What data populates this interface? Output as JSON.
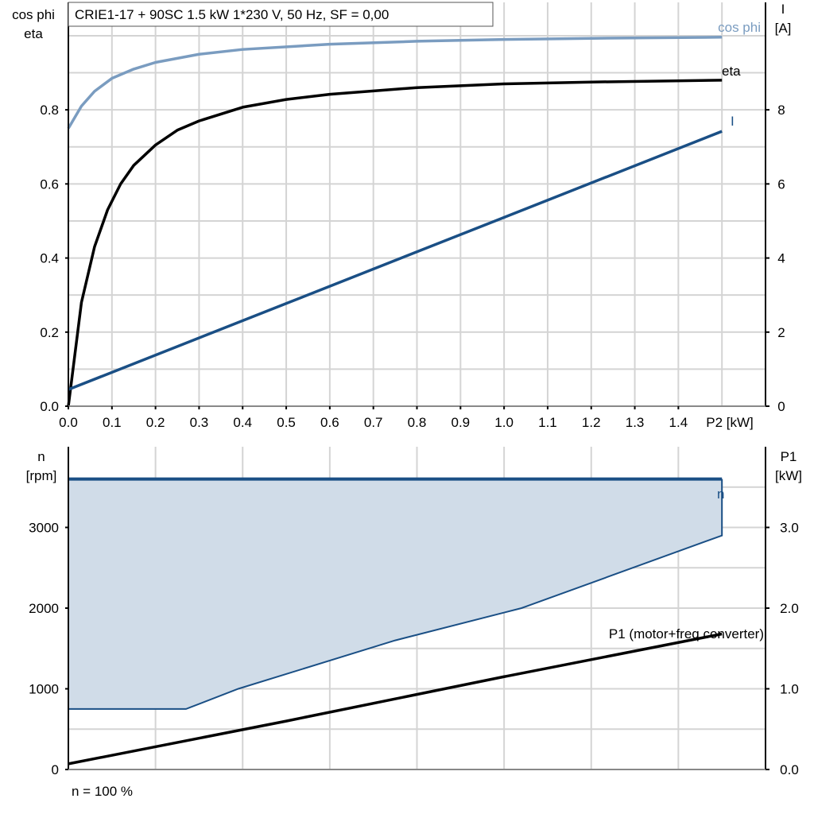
{
  "chart_data": [
    {
      "type": "line",
      "title": "CRIE1-17 + 90SC   1.5 kW   1*230 V, 50 Hz, SF = 0,00",
      "xlabel": "P2 [kW]",
      "ylabel_left": [
        "cos phi",
        "eta"
      ],
      "ylabel_right": [
        "I",
        "[A]"
      ],
      "xlim": [
        0,
        1.6
      ],
      "ylim_left": [
        0,
        1.09
      ],
      "ylim_right": [
        0,
        10.9
      ],
      "x_ticks": [
        "0.0",
        "0.1",
        "0.2",
        "0.3",
        "0.4",
        "0.5",
        "0.6",
        "0.7",
        "0.8",
        "0.9",
        "1.0",
        "1.1",
        "1.2",
        "1.3",
        "1.4"
      ],
      "y_ticks_left": [
        "0.0",
        "0.2",
        "0.4",
        "0.6",
        "0.8"
      ],
      "y_ticks_right": [
        "0",
        "2",
        "4",
        "6",
        "8"
      ],
      "grid": true,
      "series": [
        {
          "name": "cos phi",
          "axis": "left",
          "color": "#7a9cc0",
          "x": [
            0,
            0.03,
            0.06,
            0.1,
            0.15,
            0.2,
            0.3,
            0.4,
            0.6,
            0.8,
            1.0,
            1.2,
            1.5
          ],
          "y": [
            0.75,
            0.81,
            0.85,
            0.885,
            0.91,
            0.928,
            0.95,
            0.963,
            0.977,
            0.985,
            0.99,
            0.993,
            0.996
          ]
        },
        {
          "name": "eta",
          "axis": "left",
          "color": "#000000",
          "x": [
            0,
            0.03,
            0.06,
            0.09,
            0.12,
            0.15,
            0.2,
            0.25,
            0.3,
            0.4,
            0.5,
            0.6,
            0.8,
            1.0,
            1.2,
            1.5
          ],
          "y": [
            0,
            0.28,
            0.43,
            0.53,
            0.6,
            0.65,
            0.705,
            0.745,
            0.77,
            0.807,
            0.828,
            0.842,
            0.86,
            0.87,
            0.875,
            0.88
          ]
        },
        {
          "name": "I",
          "axis": "right",
          "color": "#1a4f85",
          "x": [
            0,
            1.5
          ],
          "y": [
            0.45,
            7.42
          ]
        }
      ]
    },
    {
      "type": "area",
      "footer": "n = 100 %",
      "ylabel_left": [
        "n",
        "[rpm]"
      ],
      "ylabel_right": [
        "P1",
        "[kW]"
      ],
      "xlim": [
        0,
        1.6
      ],
      "ylim_left": [
        0,
        4000
      ],
      "ylim_right": [
        0,
        4.0
      ],
      "y_ticks_left": [
        "0",
        "1000",
        "2000",
        "3000"
      ],
      "y_ticks_right": [
        "0.0",
        "1.0",
        "2.0",
        "3.0"
      ],
      "grid": true,
      "series": [
        {
          "name": "n",
          "axis": "left",
          "color": "#1a4f85",
          "x": [
            0,
            1.5
          ],
          "y": [
            3600,
            3600
          ]
        },
        {
          "name": "n range lower bound",
          "axis": "left",
          "color": "#1a4f85",
          "fill": "#d0dce8",
          "x": [
            0,
            0.27,
            0.39,
            0.75,
            1.04,
            1.5
          ],
          "y": [
            750,
            750,
            1000,
            1600,
            2000,
            2900
          ]
        },
        {
          "name": "P1 (motor+freq.converter)",
          "axis": "right",
          "color": "#000000",
          "x": [
            0,
            0.5,
            1.0,
            1.5
          ],
          "y": [
            0.07,
            0.6,
            1.15,
            1.68
          ]
        }
      ]
    }
  ]
}
